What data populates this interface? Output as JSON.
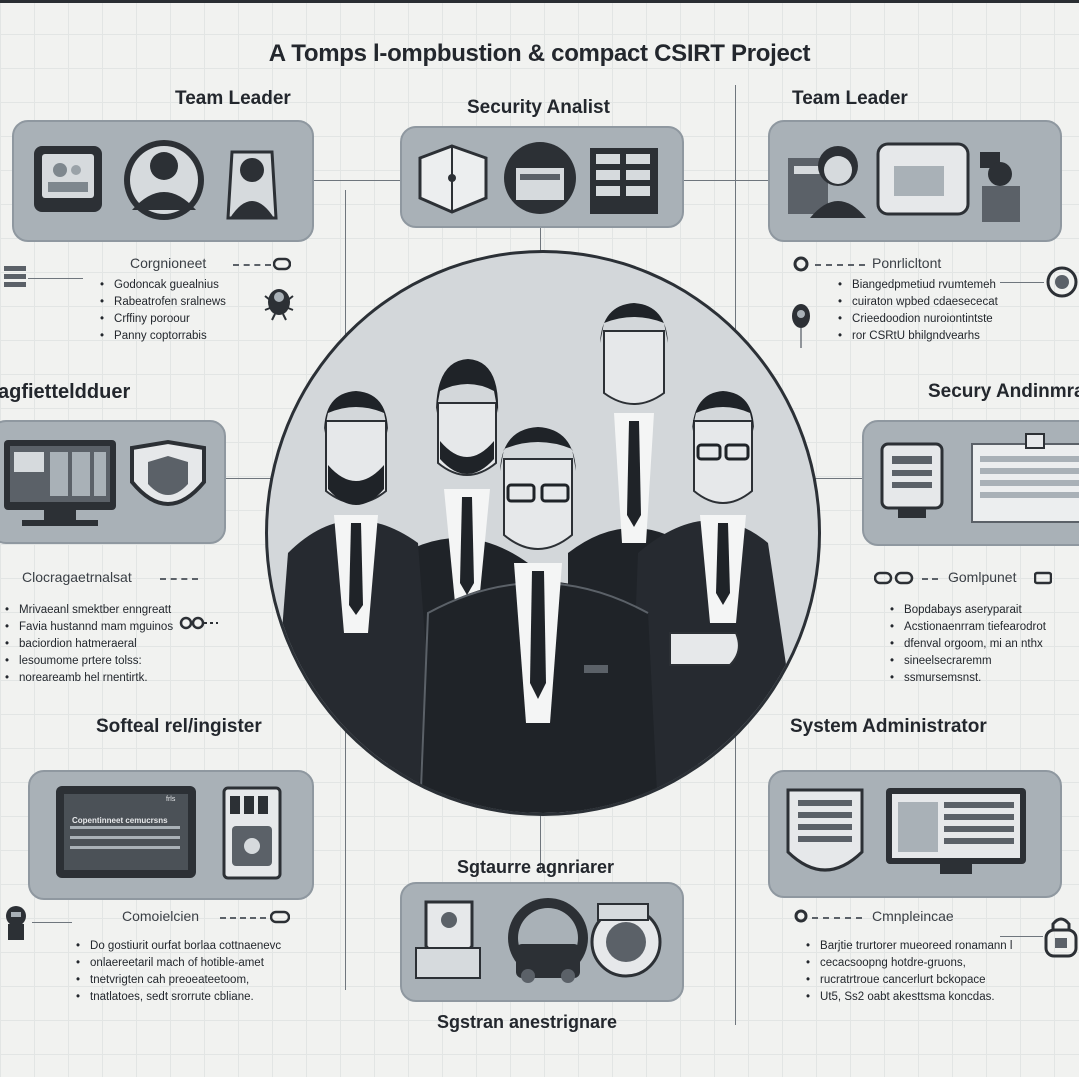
{
  "title": "A Tomps l-ompbustion & compact CSIRT Project",
  "roles": {
    "top_left": "Team Leader",
    "top_center": "Security Analist",
    "top_right": "Team Leader",
    "mid_left": "agfietteldduer",
    "mid_right": "Secury Andinmraı",
    "low_left": "Softeal rel/ingister",
    "low_right": "System Administrator",
    "bottom_center_top": "Sgtaurre agnriarer",
    "bottom_center_bottom": "Sgstran anestrignare"
  },
  "subheads": {
    "top_left": "Corgnioneet",
    "top_right": "Ponrlicltont",
    "mid_left": "Clocragaetrnalsat",
    "mid_right": "Gomlpunet",
    "low_left": "Comoielcien",
    "low_right": "Cmnpleincae"
  },
  "lists": {
    "top_left": [
      "Godoncak guealnius",
      "Rabeatrofen sralnews",
      "Crffiny poroour",
      "Panny coptorrabis"
    ],
    "top_right": [
      "Biangedpmetiud rvumtemeh",
      "cuiraton wpbed cdaesececat",
      "Crieedoodion nuroiontintste",
      "ror CSRtU bhilgndvearhs"
    ],
    "mid_left": [
      "Mrivaeanl smektber enngreatt",
      "Favia hustannd mam mguinos",
      "baciordion hatmeraeral",
      "lesoumome prtere tolss:",
      "noreareamb hel rnentirtk."
    ],
    "mid_right": [
      "Bopdabays aseryparait",
      "Acstionaenrram tiefearodrot",
      "dfenval orgoom, mi an nthx",
      "sineelsecraremm",
      "ssmursemsnst."
    ],
    "low_left": [
      "Do gostiurit ourfat borlaa cottnaenevc",
      "onlaereetaril mach of hotible-amet",
      "tnetvrigten cah preoeateetoom,",
      "tnatlatoes, sedt srorrute cbliane."
    ],
    "low_right": [
      "Barjtie trurtorer mueoreed ronamann l",
      "cecacsoopng hotdre-gruons,",
      "rucratrtroue cancerlurt bckopace",
      "Ut5, Ss2 oabt akesttsma koncdas."
    ]
  },
  "panels": {
    "low_left_screen_header": "Copentinneet cemucrsns",
    "low_left_tab": "frls"
  },
  "colors": {
    "panel": "#a9b1b7",
    "suit": "#1f2328",
    "hub": "#d3d7da",
    "ink": "#23272d"
  }
}
